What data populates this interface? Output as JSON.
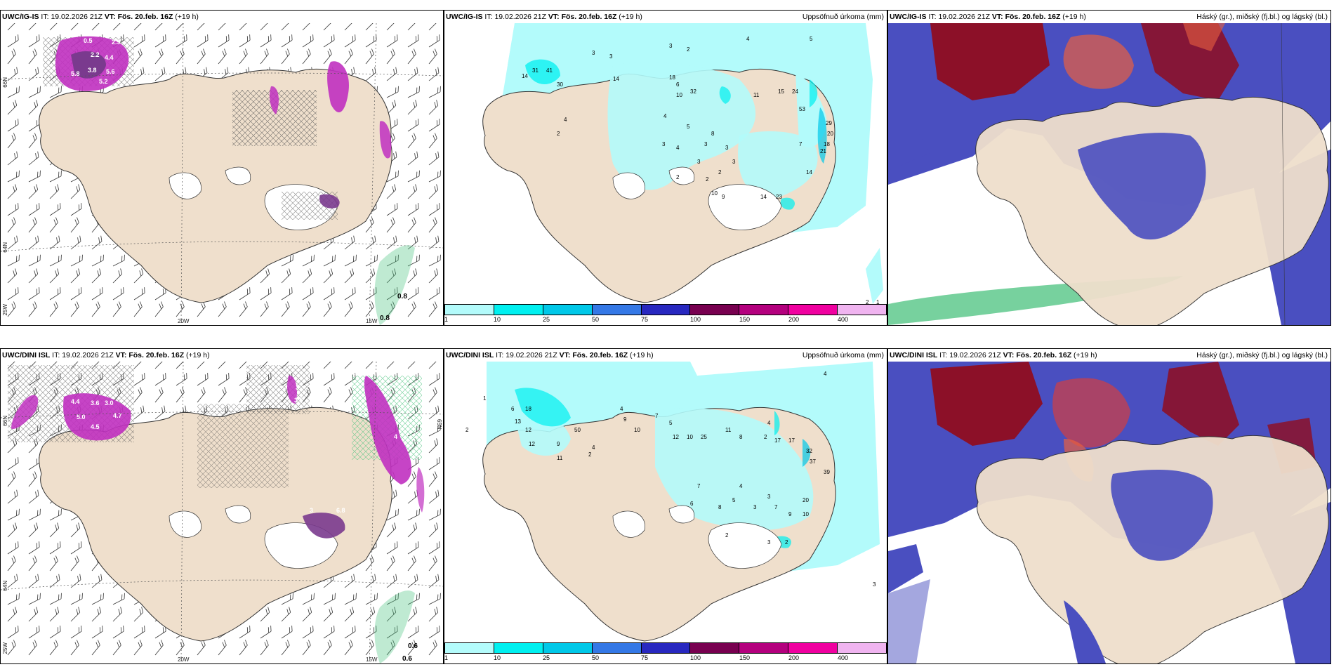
{
  "panels": [
    {
      "id": "p1",
      "model": "UWC/IG-IS",
      "it_label": "IT:",
      "it": "19.02.2026 21Z",
      "vt_label": "VT:",
      "vt": "Fös. 20.feb. 16Z",
      "lead": "(+19 h)",
      "right": ""
    },
    {
      "id": "p2",
      "model": "UWC/IG-IS",
      "it_label": "IT:",
      "it": "19.02.2026 21Z",
      "vt_label": "VT:",
      "vt": "Fös. 20.feb. 16Z",
      "lead": "(+19 h)",
      "right": "Uppsöfnuð úrkoma (mm)"
    },
    {
      "id": "p3",
      "model": "UWC/IG-IS",
      "it_label": "IT:",
      "it": "19.02.2026 21Z",
      "vt_label": "VT:",
      "vt": "Fös. 20.feb. 16Z",
      "lead": "(+19 h)",
      "right": "Háský (gr.), miðský (fj.bl.) og lágský (bl.)"
    },
    {
      "id": "p4",
      "model": "UWC/DINI ISL",
      "it_label": "IT:",
      "it": "19.02.2026 21Z",
      "vt_label": "VT:",
      "vt": "Fös. 20.feb. 16Z",
      "lead": "(+19 h)",
      "right": ""
    },
    {
      "id": "p5",
      "model": "UWC/DINI ISL",
      "it_label": "IT:",
      "it": "19.02.2026 21Z",
      "vt_label": "VT:",
      "vt": "Fös. 20.feb. 16Z",
      "lead": "(+19 h)",
      "right": "Uppsöfnuð úrkoma (mm)"
    },
    {
      "id": "p6",
      "model": "UWC/DINI ISL",
      "it_label": "IT:",
      "it": "19.02.2026 21Z",
      "vt_label": "VT:",
      "vt": "Fös. 20.feb. 16Z",
      "lead": "(+19 h)",
      "right": "Háský (gr.), miðský (fj.bl.) og lágský (bl.)"
    }
  ],
  "gridlabels": {
    "n66": "66N",
    "n64": "64N",
    "n65": "65N",
    "w25": "25W",
    "w20": "20W",
    "w15": "15W"
  },
  "colorbar": {
    "ticks": [
      "1",
      "10",
      "25",
      "50",
      "75",
      "100",
      "150",
      "200",
      "400"
    ],
    "colors": [
      "#b3fbfb",
      "#00f0f0",
      "#00c8e8",
      "#3478e6",
      "#2828c0",
      "#780050",
      "#b4007e",
      "#f000a0",
      "#f0b4f0"
    ]
  },
  "values": {
    "p1_top": [
      "0.5",
      "2.9",
      "2.2",
      "4.4",
      "3.8",
      "5.8",
      "5.6",
      "5.2"
    ],
    "p1_corner": [
      "0.8",
      "0.8"
    ],
    "p4_corner": [
      "0.6",
      "0.6"
    ],
    "p4_vals": [
      "4.4",
      "3.6",
      "3.0",
      "5.0",
      "4.7",
      "4.5",
      "3",
      "3.5",
      "4.1",
      "3",
      "6.8",
      "4"
    ],
    "p2_vals": [
      "3",
      "3",
      "2",
      "4",
      "31",
      "41",
      "14",
      "14",
      "30",
      "3",
      "4",
      "2",
      "18",
      "32",
      "10",
      "11",
      "15",
      "24",
      "53",
      "29",
      "20",
      "18",
      "21",
      "14",
      "7",
      "2",
      "10",
      "9",
      "14",
      "23",
      "2",
      "1",
      "2",
      "5",
      "6",
      "4",
      "5",
      "3",
      "4",
      "3",
      "3",
      "8",
      "3",
      "3",
      "2"
    ],
    "p5_vals": [
      "1",
      "2",
      "6",
      "18",
      "13",
      "12",
      "12",
      "9",
      "50",
      "11",
      "2",
      "4",
      "4",
      "9",
      "10",
      "7",
      "5",
      "12",
      "10",
      "25",
      "11",
      "8",
      "2",
      "4",
      "17",
      "17",
      "32",
      "37",
      "39",
      "20",
      "10",
      "9",
      "7",
      "3",
      "3",
      "2",
      "3",
      "4",
      "2",
      "4",
      "5",
      "8",
      "6",
      "7",
      "3"
    ]
  },
  "colors": {
    "land": "#efdfcc",
    "cyan_light": "#b3fbfb",
    "cyan": "#00f0f0",
    "magenta": "#c030c0",
    "purple": "#7a3a8e",
    "high": "#8c1028",
    "mid": "#e86040",
    "low": "#3f47b9",
    "green": "#49c27d"
  }
}
